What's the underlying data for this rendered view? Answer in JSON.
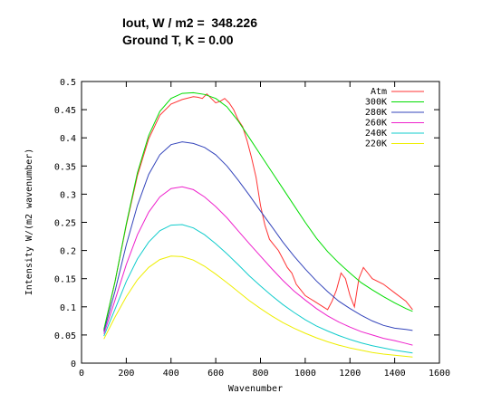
{
  "header": {
    "line1": "Iout, W / m2 =  348.226",
    "line2": "Ground T, K = 0.00"
  },
  "chart_data": {
    "type": "line",
    "xlabel": "Wavenumber",
    "ylabel": "Intensity W/(m2 wavenumber)",
    "xlim": [
      0,
      1600
    ],
    "ylim": [
      0,
      0.5
    ],
    "xticks": [
      "0",
      "200",
      "400",
      "600",
      "800",
      "1000",
      "1200",
      "1400",
      "1600"
    ],
    "yticks": [
      "0",
      "0.05",
      "0.1",
      "0.15",
      "0.2",
      "0.25",
      "0.3",
      "0.35",
      "0.4",
      "0.45",
      "0.5"
    ],
    "grid": false,
    "legend_position": "top-right",
    "series": [
      {
        "name": "Atm",
        "color": "#ff3333",
        "x": [
          100,
          150,
          200,
          250,
          300,
          350,
          400,
          450,
          500,
          520,
          540,
          560,
          580,
          600,
          620,
          640,
          660,
          680,
          700,
          720,
          740,
          760,
          780,
          800,
          820,
          840,
          860,
          880,
          900,
          920,
          940,
          960,
          980,
          1000,
          1020,
          1040,
          1060,
          1080,
          1100,
          1120,
          1140,
          1160,
          1180,
          1200,
          1220,
          1240,
          1260,
          1280,
          1300,
          1350,
          1400,
          1450,
          1480
        ],
        "y": [
          0.058,
          0.145,
          0.245,
          0.333,
          0.398,
          0.44,
          0.46,
          0.468,
          0.473,
          0.472,
          0.47,
          0.478,
          0.47,
          0.462,
          0.465,
          0.47,
          0.462,
          0.45,
          0.432,
          0.42,
          0.395,
          0.365,
          0.33,
          0.28,
          0.245,
          0.22,
          0.21,
          0.2,
          0.185,
          0.17,
          0.16,
          0.14,
          0.13,
          0.12,
          0.115,
          0.11,
          0.105,
          0.1,
          0.095,
          0.11,
          0.13,
          0.16,
          0.15,
          0.12,
          0.1,
          0.15,
          0.17,
          0.16,
          0.15,
          0.14,
          0.125,
          0.11,
          0.095
        ]
      },
      {
        "name": "300K",
        "color": "#00dd00",
        "x": [
          100,
          150,
          200,
          250,
          300,
          350,
          400,
          450,
          500,
          550,
          600,
          650,
          700,
          750,
          800,
          850,
          900,
          950,
          1000,
          1050,
          1100,
          1150,
          1200,
          1250,
          1300,
          1350,
          1400,
          1450,
          1480
        ],
        "y": [
          0.06,
          0.145,
          0.247,
          0.338,
          0.404,
          0.447,
          0.47,
          0.479,
          0.48,
          0.477,
          0.47,
          0.455,
          0.43,
          0.4,
          0.37,
          0.34,
          0.31,
          0.28,
          0.25,
          0.222,
          0.198,
          0.178,
          0.16,
          0.143,
          0.13,
          0.118,
          0.107,
          0.097,
          0.092
        ]
      },
      {
        "name": "280K",
        "color": "#3344bb",
        "x": [
          100,
          150,
          200,
          250,
          300,
          350,
          400,
          450,
          500,
          550,
          600,
          650,
          700,
          750,
          800,
          850,
          900,
          950,
          1000,
          1050,
          1100,
          1150,
          1200,
          1250,
          1300,
          1350,
          1400,
          1450,
          1480
        ],
        "y": [
          0.056,
          0.128,
          0.21,
          0.28,
          0.335,
          0.37,
          0.388,
          0.393,
          0.39,
          0.383,
          0.37,
          0.35,
          0.325,
          0.298,
          0.27,
          0.243,
          0.215,
          0.19,
          0.167,
          0.146,
          0.127,
          0.11,
          0.097,
          0.085,
          0.075,
          0.067,
          0.062,
          0.06,
          0.058
        ]
      },
      {
        "name": "260K",
        "color": "#ee22cc",
        "x": [
          100,
          150,
          200,
          250,
          300,
          350,
          400,
          450,
          500,
          550,
          600,
          650,
          700,
          750,
          800,
          850,
          900,
          950,
          1000,
          1050,
          1100,
          1150,
          1200,
          1250,
          1300,
          1350,
          1400,
          1450,
          1480
        ],
        "y": [
          0.052,
          0.112,
          0.175,
          0.228,
          0.268,
          0.295,
          0.31,
          0.313,
          0.308,
          0.295,
          0.278,
          0.258,
          0.235,
          0.212,
          0.19,
          0.168,
          0.147,
          0.128,
          0.112,
          0.097,
          0.084,
          0.073,
          0.064,
          0.056,
          0.05,
          0.044,
          0.04,
          0.035,
          0.032
        ]
      },
      {
        "name": "240K",
        "color": "#11cccc",
        "x": [
          100,
          150,
          200,
          250,
          300,
          350,
          400,
          450,
          500,
          550,
          600,
          650,
          700,
          750,
          800,
          850,
          900,
          950,
          1000,
          1050,
          1100,
          1150,
          1200,
          1250,
          1300,
          1350,
          1400,
          1450,
          1480
        ],
        "y": [
          0.048,
          0.096,
          0.145,
          0.185,
          0.215,
          0.235,
          0.245,
          0.246,
          0.24,
          0.228,
          0.212,
          0.194,
          0.175,
          0.155,
          0.137,
          0.12,
          0.104,
          0.09,
          0.077,
          0.066,
          0.057,
          0.049,
          0.042,
          0.036,
          0.031,
          0.027,
          0.023,
          0.02,
          0.018
        ]
      },
      {
        "name": "220K",
        "color": "#eeee00",
        "x": [
          100,
          150,
          200,
          250,
          300,
          350,
          400,
          450,
          500,
          550,
          600,
          650,
          700,
          750,
          800,
          850,
          900,
          950,
          1000,
          1050,
          1100,
          1150,
          1200,
          1250,
          1300,
          1350,
          1400,
          1450,
          1480
        ],
        "y": [
          0.043,
          0.082,
          0.118,
          0.148,
          0.17,
          0.184,
          0.19,
          0.189,
          0.183,
          0.172,
          0.158,
          0.143,
          0.127,
          0.111,
          0.097,
          0.084,
          0.072,
          0.062,
          0.053,
          0.045,
          0.038,
          0.032,
          0.027,
          0.023,
          0.019,
          0.016,
          0.014,
          0.012,
          0.011
        ]
      }
    ]
  }
}
